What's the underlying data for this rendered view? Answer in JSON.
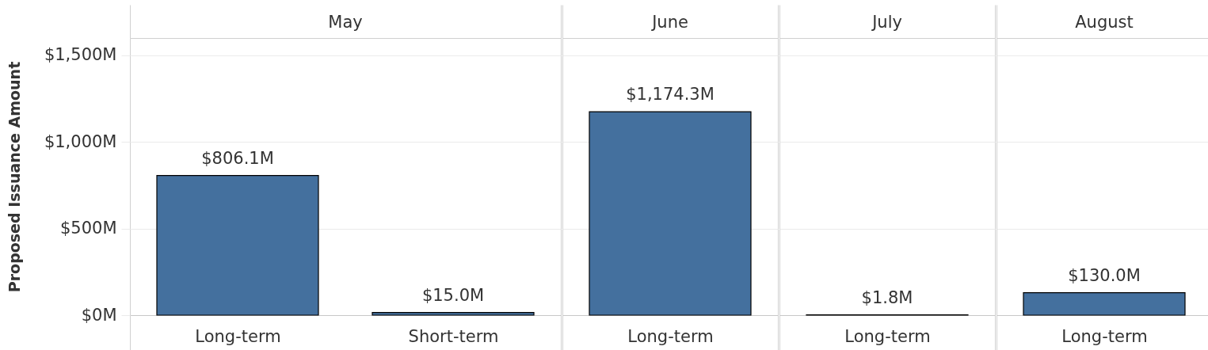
{
  "chart_data": [
    {
      "type": "bar",
      "title": "May",
      "ylabel": "Proposed Issuance Amount",
      "categories": [
        "Long-term",
        "Short-term"
      ],
      "values": [
        806.1,
        15.0
      ],
      "value_labels": [
        "$806.1M",
        "$15.0M"
      ],
      "color": "#44709e",
      "ylim": [
        0,
        1600
      ],
      "yticks": [
        {
          "value": 0,
          "label": "$0M"
        },
        {
          "value": 500,
          "label": "$500M"
        },
        {
          "value": 1000,
          "label": "$1,000M"
        },
        {
          "value": 1500,
          "label": "$1,500M"
        }
      ],
      "grid": "y"
    },
    {
      "type": "bar",
      "title": "June",
      "categories": [
        "Long-term"
      ],
      "values": [
        1174.3
      ],
      "value_labels": [
        "$1,174.3M"
      ],
      "color": "#44709e",
      "ylim": [
        0,
        1600
      ],
      "yticks": [
        {
          "value": 0,
          "label": null
        },
        {
          "value": 500,
          "label": null
        },
        {
          "value": 1000,
          "label": null
        },
        {
          "value": 1500,
          "label": null
        }
      ],
      "grid": "y",
      "tick_labels": "x"
    },
    {
      "type": "bar",
      "title": "July",
      "categories": [
        "Long-term"
      ],
      "values": [
        1.8
      ],
      "value_labels": [
        "$1.8M"
      ],
      "color": "#44709e",
      "ylim": [
        0,
        1600
      ],
      "yticks": [
        {
          "value": 0,
          "label": null
        },
        {
          "value": 500,
          "label": null
        },
        {
          "value": 1000,
          "label": null
        },
        {
          "value": 1500,
          "label": null
        }
      ],
      "grid": "y",
      "tick_labels": "x"
    },
    {
      "type": "bar",
      "title": "August",
      "categories": [
        "Long-term"
      ],
      "values": [
        130.0
      ],
      "value_labels": [
        "$130.0M"
      ],
      "color": "#44709e",
      "ylim": [
        0,
        1600
      ],
      "yticks": [
        {
          "value": 0,
          "label": null
        },
        {
          "value": 500,
          "label": null
        },
        {
          "value": 1000,
          "label": null
        },
        {
          "value": 1500,
          "label": null
        }
      ],
      "grid": "y",
      "tick_labels": "x"
    }
  ]
}
